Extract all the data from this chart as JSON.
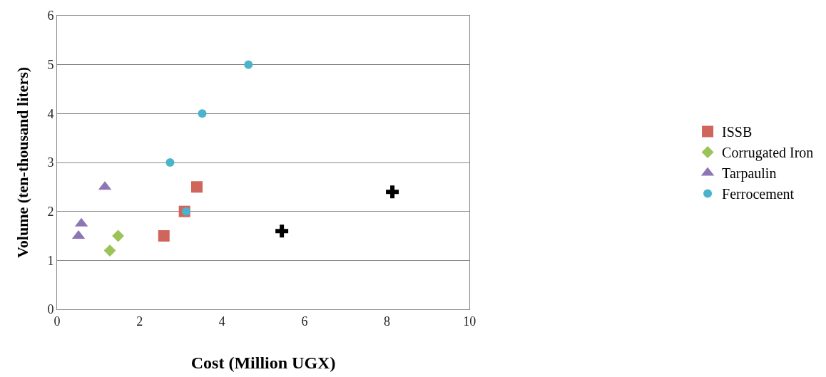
{
  "chart_data": {
    "type": "scatter",
    "xlabel": "Cost (Million UGX)",
    "ylabel": "Volume (ten-thousand liters)",
    "series": [
      {
        "color": "#000000",
        "marker": "cross",
        "x": [
          5.45,
          8.13
        ],
        "values": [
          1.6,
          2.4
        ]
      },
      {
        "name": "ISSB",
        "color": "#d0655c",
        "marker": "square",
        "x": [
          2.59,
          3.09,
          3.39
        ],
        "values": [
          1.5,
          2.0,
          2.5
        ]
      },
      {
        "name": "Corrugated Iron",
        "color": "#9bc35a",
        "marker": "diamond",
        "x": [
          1.28,
          1.48
        ],
        "values": [
          1.2,
          1.5
        ]
      },
      {
        "name": "Tarpaulin",
        "color": "#8e75b5",
        "marker": "triangle",
        "x": [
          0.52,
          0.59,
          1.16
        ],
        "values": [
          1.5,
          1.75,
          2.5
        ]
      },
      {
        "name": "Ferrocement",
        "color": "#4bb4cc",
        "marker": "circle",
        "x": [
          2.74,
          3.13,
          3.52,
          4.64
        ],
        "values": [
          3.0,
          2.0,
          4.0,
          5.0
        ]
      }
    ],
    "xlim": [
      0,
      10
    ],
    "xticks": [
      0,
      2,
      4,
      6,
      8,
      10
    ],
    "ylim": [
      0,
      6
    ],
    "yticks": [
      0,
      1,
      2,
      3,
      4,
      5,
      6
    ],
    "grid": "y",
    "legend": "right"
  }
}
